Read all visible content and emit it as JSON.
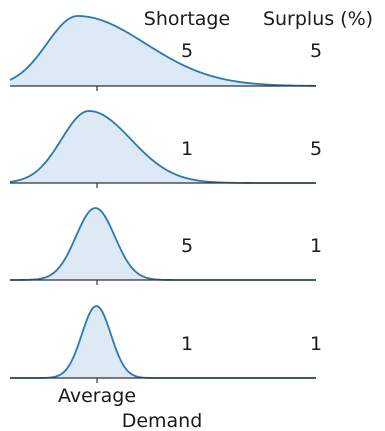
{
  "header": {
    "col1": "Shortage",
    "col2": "Surplus (%)"
  },
  "x_label_line1": "Average",
  "x_label_line2": "Demand",
  "colors": {
    "line": "#2a78b5",
    "fill": "#dde9f4",
    "axis": "#333333",
    "text": "#1a1a1a"
  },
  "chart_data": {
    "type": "area",
    "title": "",
    "xlabel": "Average\nDemand",
    "ylabel": "",
    "columns": [
      "Shortage",
      "Surplus (%)"
    ],
    "x_reference": "Average Demand",
    "panels": [
      {
        "shortage": "5",
        "surplus": "5",
        "mode": -0.6,
        "spread_left": 0.95,
        "spread_right": 2.1,
        "skewed": true
      },
      {
        "shortage": "1",
        "surplus": "5",
        "mode": -0.25,
        "spread_left": 0.85,
        "spread_right": 1.3,
        "skewed": true
      },
      {
        "shortage": "5",
        "surplus": "1",
        "mode": -0.05,
        "spread_left": 0.6,
        "spread_right": 0.6,
        "skewed": false
      },
      {
        "shortage": "1",
        "surplus": "1",
        "mode": -0.02,
        "spread_left": 0.45,
        "spread_right": 0.45,
        "skewed": false
      }
    ],
    "x_range": [
      -2.5,
      6.5
    ],
    "grid": false
  }
}
